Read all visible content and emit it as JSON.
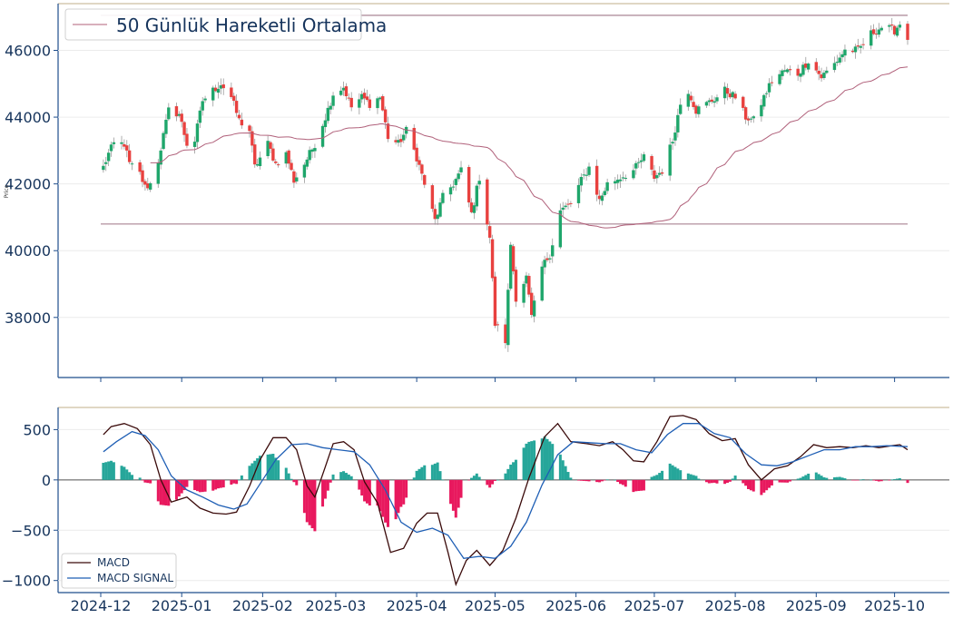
{
  "chart_data": [
    {
      "type": "candlestick",
      "ylabel": "Price",
      "ylim": [
        36200,
        47400
      ],
      "yticks": [
        38000,
        40000,
        42000,
        44000,
        46000
      ],
      "legend": {
        "placement": "top-left",
        "entries": [
          "50 Günlük Hareketli Ortalama"
        ]
      },
      "hlines": [
        47050,
        40800
      ],
      "colors": {
        "up": "#1fa66b",
        "down": "#e8413f",
        "ma": "#b0607a",
        "hline": "#b89aa6",
        "frame": "#1f4e8c"
      },
      "close_anchors": [
        [
          "2024-12-02",
          42500
        ],
        [
          "2024-12-04",
          42900
        ],
        [
          "2024-12-06",
          43200
        ],
        [
          "2024-12-10",
          43200
        ],
        [
          "2024-12-12",
          42600
        ],
        [
          "2024-12-16",
          42300
        ],
        [
          "2024-12-18",
          41900
        ],
        [
          "2024-12-20",
          42000
        ],
        [
          "2024-12-23",
          42700
        ],
        [
          "2024-12-27",
          44200
        ],
        [
          "2024-12-31",
          44100
        ],
        [
          "2025-01-03",
          43200
        ],
        [
          "2025-01-06",
          43300
        ],
        [
          "2025-01-09",
          44500
        ],
        [
          "2025-01-13",
          44800
        ],
        [
          "2025-01-16",
          45000
        ],
        [
          "2025-01-20",
          44600
        ],
        [
          "2025-01-23",
          43900
        ],
        [
          "2025-01-27",
          43600
        ],
        [
          "2025-01-29",
          42500
        ],
        [
          "2025-02-03",
          43200
        ],
        [
          "2025-02-06",
          42600
        ],
        [
          "2025-02-10",
          42900
        ],
        [
          "2025-02-13",
          42100
        ],
        [
          "2025-02-17",
          42600
        ],
        [
          "2025-02-21",
          43200
        ],
        [
          "2025-02-25",
          44000
        ],
        [
          "2025-02-28",
          44700
        ],
        [
          "2025-03-04",
          44900
        ],
        [
          "2025-03-07",
          44300
        ],
        [
          "2025-03-11",
          44600
        ],
        [
          "2025-03-14",
          44400
        ],
        [
          "2025-03-18",
          44600
        ],
        [
          "2025-03-21",
          43400
        ],
        [
          "2025-03-25",
          43200
        ],
        [
          "2025-03-28",
          43600
        ],
        [
          "2025-04-01",
          42800
        ],
        [
          "2025-04-04",
          42000
        ],
        [
          "2025-04-08",
          40900
        ],
        [
          "2025-04-11",
          41600
        ],
        [
          "2025-04-15",
          42000
        ],
        [
          "2025-04-18",
          42400
        ],
        [
          "2025-04-22",
          41100
        ],
        [
          "2025-04-25",
          42200
        ],
        [
          "2025-04-29",
          40400
        ],
        [
          "2025-05-01",
          37800
        ],
        [
          "2025-05-05",
          37300
        ],
        [
          "2025-05-07",
          40200
        ],
        [
          "2025-05-09",
          38600
        ],
        [
          "2025-05-13",
          39200
        ],
        [
          "2025-05-15",
          38000
        ],
        [
          "2025-05-19",
          39500
        ],
        [
          "2025-05-22",
          39900
        ],
        [
          "2025-05-26",
          41200
        ],
        [
          "2025-05-30",
          41400
        ],
        [
          "2025-06-03",
          42100
        ],
        [
          "2025-06-06",
          42500
        ],
        [
          "2025-06-10",
          41500
        ],
        [
          "2025-06-13",
          42000
        ],
        [
          "2025-06-18",
          42200
        ],
        [
          "2025-06-23",
          42400
        ],
        [
          "2025-06-27",
          42800
        ],
        [
          "2025-07-01",
          42200
        ],
        [
          "2025-07-04",
          42400
        ],
        [
          "2025-07-08",
          43300
        ],
        [
          "2025-07-11",
          44400
        ],
        [
          "2025-07-14",
          44800
        ],
        [
          "2025-07-17",
          44200
        ],
        [
          "2025-07-21",
          44400
        ],
        [
          "2025-07-25",
          44600
        ],
        [
          "2025-07-28",
          44800
        ],
        [
          "2025-08-01",
          44600
        ],
        [
          "2025-08-05",
          44000
        ],
        [
          "2025-08-08",
          43900
        ],
        [
          "2025-08-12",
          44600
        ],
        [
          "2025-08-15",
          45100
        ],
        [
          "2025-08-20",
          45400
        ],
        [
          "2025-08-25",
          45300
        ],
        [
          "2025-08-29",
          45700
        ],
        [
          "2025-09-03",
          45200
        ],
        [
          "2025-09-08",
          45600
        ],
        [
          "2025-09-12",
          46000
        ],
        [
          "2025-09-17",
          46000
        ],
        [
          "2025-09-22",
          46500
        ],
        [
          "2025-09-26",
          46700
        ],
        [
          "2025-10-01",
          46600
        ],
        [
          "2025-10-03",
          46800
        ],
        [
          "2025-10-06",
          46400
        ]
      ]
    },
    {
      "type": "line+bar",
      "ylim": [
        -1120,
        720
      ],
      "yticks": [
        -1000,
        -500,
        0,
        500
      ],
      "xticks": [
        "2024-12",
        "2025-01",
        "2025-02",
        "2025-03",
        "2025-04",
        "2025-05",
        "2025-06",
        "2025-07",
        "2025-08",
        "2025-09",
        "2025-10"
      ],
      "legend": {
        "placement": "bottom-left",
        "entries": [
          "MACD",
          "MACD SIGNAL"
        ]
      },
      "series": [
        {
          "name": "MACD",
          "color": "#3a0a0a",
          "points": [
            [
              "2024-12-02",
              450
            ],
            [
              "2024-12-05",
              530
            ],
            [
              "2024-12-10",
              560
            ],
            [
              "2024-12-15",
              510
            ],
            [
              "2024-12-20",
              350
            ],
            [
              "2024-12-24",
              0
            ],
            [
              "2024-12-28",
              -220
            ],
            [
              "2025-01-03",
              -170
            ],
            [
              "2025-01-08",
              -280
            ],
            [
              "2025-01-13",
              -330
            ],
            [
              "2025-01-18",
              -340
            ],
            [
              "2025-01-22",
              -320
            ],
            [
              "2025-01-27",
              -60
            ],
            [
              "2025-01-31",
              200
            ],
            [
              "2025-02-05",
              420
            ],
            [
              "2025-02-10",
              420
            ],
            [
              "2025-02-14",
              300
            ],
            [
              "2025-02-18",
              -60
            ],
            [
              "2025-02-21",
              -170
            ],
            [
              "2025-02-25",
              130
            ],
            [
              "2025-02-28",
              360
            ],
            [
              "2025-03-04",
              380
            ],
            [
              "2025-03-08",
              300
            ],
            [
              "2025-03-12",
              -20
            ],
            [
              "2025-03-17",
              -230
            ],
            [
              "2025-03-22",
              -720
            ],
            [
              "2025-03-27",
              -680
            ],
            [
              "2025-04-01",
              -430
            ],
            [
              "2025-04-05",
              -330
            ],
            [
              "2025-04-09",
              -330
            ],
            [
              "2025-04-13",
              -720
            ],
            [
              "2025-04-16",
              -1040
            ],
            [
              "2025-04-20",
              -800
            ],
            [
              "2025-04-24",
              -700
            ],
            [
              "2025-04-29",
              -850
            ],
            [
              "2025-05-04",
              -700
            ],
            [
              "2025-05-09",
              -380
            ],
            [
              "2025-05-14",
              20
            ],
            [
              "2025-05-20",
              430
            ],
            [
              "2025-05-25",
              560
            ],
            [
              "2025-05-30",
              380
            ],
            [
              "2025-06-05",
              360
            ],
            [
              "2025-06-10",
              340
            ],
            [
              "2025-06-15",
              380
            ],
            [
              "2025-06-19",
              300
            ],
            [
              "2025-06-23",
              190
            ],
            [
              "2025-06-27",
              180
            ],
            [
              "2025-07-02",
              380
            ],
            [
              "2025-07-07",
              630
            ],
            [
              "2025-07-12",
              640
            ],
            [
              "2025-07-17",
              600
            ],
            [
              "2025-07-22",
              460
            ],
            [
              "2025-07-27",
              390
            ],
            [
              "2025-08-01",
              410
            ],
            [
              "2025-08-06",
              150
            ],
            [
              "2025-08-11",
              0
            ],
            [
              "2025-08-16",
              110
            ],
            [
              "2025-08-21",
              140
            ],
            [
              "2025-08-26",
              230
            ],
            [
              "2025-08-31",
              350
            ],
            [
              "2025-09-05",
              320
            ],
            [
              "2025-09-10",
              330
            ],
            [
              "2025-09-15",
              320
            ],
            [
              "2025-09-20",
              340
            ],
            [
              "2025-09-25",
              320
            ],
            [
              "2025-09-30",
              340
            ],
            [
              "2025-10-03",
              350
            ],
            [
              "2025-10-06",
              300
            ]
          ]
        },
        {
          "name": "MACD SIGNAL",
          "color": "#1f5fb5",
          "points": [
            [
              "2024-12-02",
              280
            ],
            [
              "2024-12-07",
              380
            ],
            [
              "2024-12-13",
              480
            ],
            [
              "2024-12-18",
              440
            ],
            [
              "2024-12-23",
              300
            ],
            [
              "2024-12-28",
              40
            ],
            [
              "2025-01-03",
              -100
            ],
            [
              "2025-01-09",
              -170
            ],
            [
              "2025-01-15",
              -250
            ],
            [
              "2025-01-21",
              -290
            ],
            [
              "2025-01-26",
              -240
            ],
            [
              "2025-02-01",
              0
            ],
            [
              "2025-02-06",
              200
            ],
            [
              "2025-02-12",
              350
            ],
            [
              "2025-02-18",
              360
            ],
            [
              "2025-02-24",
              320
            ],
            [
              "2025-03-02",
              300
            ],
            [
              "2025-03-08",
              280
            ],
            [
              "2025-03-14",
              150
            ],
            [
              "2025-03-20",
              -100
            ],
            [
              "2025-03-26",
              -420
            ],
            [
              "2025-04-01",
              -520
            ],
            [
              "2025-04-07",
              -480
            ],
            [
              "2025-04-13",
              -550
            ],
            [
              "2025-04-19",
              -780
            ],
            [
              "2025-04-25",
              -760
            ],
            [
              "2025-05-01",
              -780
            ],
            [
              "2025-05-07",
              -660
            ],
            [
              "2025-05-13",
              -420
            ],
            [
              "2025-05-19",
              -50
            ],
            [
              "2025-05-25",
              250
            ],
            [
              "2025-05-31",
              380
            ],
            [
              "2025-06-06",
              370
            ],
            [
              "2025-06-12",
              360
            ],
            [
              "2025-06-18",
              360
            ],
            [
              "2025-06-24",
              300
            ],
            [
              "2025-06-30",
              270
            ],
            [
              "2025-07-06",
              450
            ],
            [
              "2025-07-12",
              560
            ],
            [
              "2025-07-18",
              560
            ],
            [
              "2025-07-24",
              460
            ],
            [
              "2025-07-30",
              420
            ],
            [
              "2025-08-05",
              260
            ],
            [
              "2025-08-11",
              150
            ],
            [
              "2025-08-17",
              140
            ],
            [
              "2025-08-23",
              180
            ],
            [
              "2025-08-29",
              240
            ],
            [
              "2025-09-04",
              300
            ],
            [
              "2025-09-10",
              300
            ],
            [
              "2025-09-16",
              330
            ],
            [
              "2025-09-22",
              330
            ],
            [
              "2025-09-28",
              340
            ],
            [
              "2025-10-06",
              330
            ]
          ]
        }
      ],
      "histogram_colors": {
        "positive": "#26a69a",
        "negative": "#e8195e"
      }
    }
  ]
}
